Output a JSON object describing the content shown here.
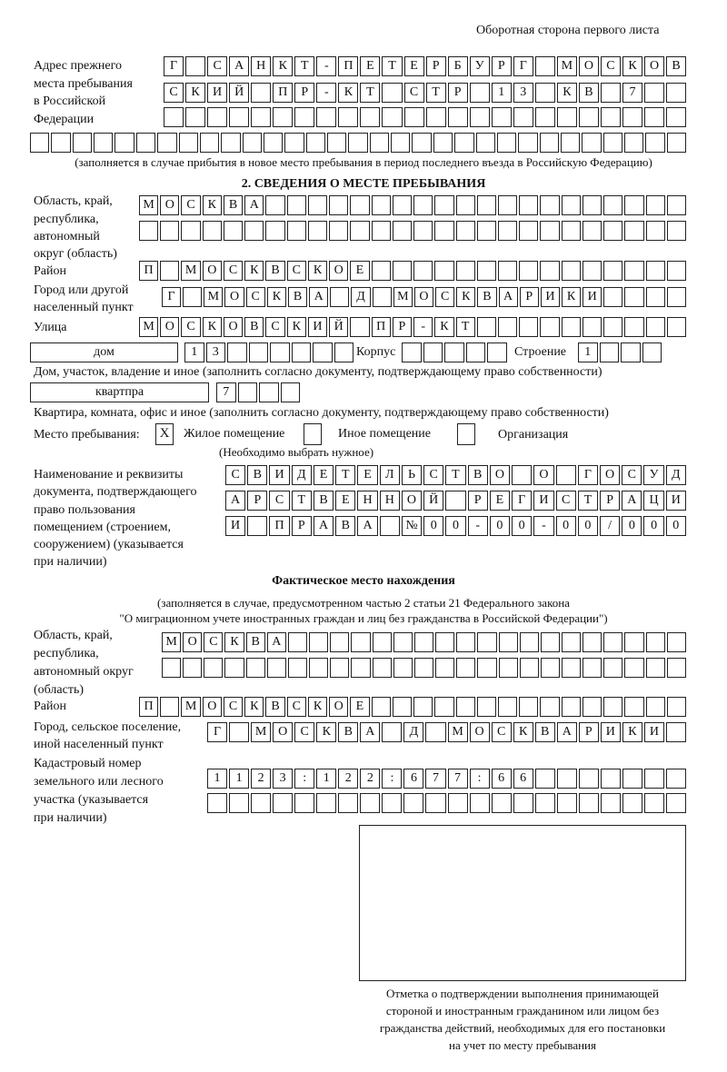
{
  "header": "Оборотная сторона первого листа",
  "prev_address": {
    "label": [
      "Адрес прежнего",
      "места пребывания",
      "в Российской",
      "Федерации"
    ],
    "rows": [
      [
        "Г",
        "",
        "С",
        "А",
        "Н",
        "К",
        "Т",
        "-",
        "П",
        "Е",
        "Т",
        "Е",
        "Р",
        "Б",
        "У",
        "Р",
        "Г",
        "",
        "М",
        "О",
        "С",
        "К",
        "О",
        "В"
      ],
      [
        "С",
        "К",
        "И",
        "Й",
        "",
        "П",
        "Р",
        "-",
        "К",
        "Т",
        "",
        "С",
        "Т",
        "Р",
        "",
        "1",
        "3",
        "",
        "К",
        "В",
        "",
        "7",
        "",
        ""
      ],
      [
        "",
        "",
        "",
        "",
        "",
        "",
        "",
        "",
        "",
        "",
        "",
        "",
        "",
        "",
        "",
        "",
        "",
        "",
        "",
        "",
        "",
        "",
        "",
        ""
      ],
      [
        "",
        "",
        "",
        "",
        "",
        "",
        "",
        "",
        "",
        "",
        "",
        "",
        "",
        "",
        "",
        "",
        "",
        "",
        "",
        "",
        "",
        "",
        "",
        "",
        "",
        "",
        "",
        "",
        "",
        "",
        ""
      ]
    ],
    "note": "(заполняется в случае прибытия в новое место пребывания в период последнего въезда в Российскую Федерацию)"
  },
  "section2": {
    "title": "2. СВЕДЕНИЯ О МЕСТЕ ПРЕБЫВАНИЯ",
    "region_label": [
      "Область, край,",
      "республика,",
      "автономный",
      "округ (область)"
    ],
    "region_rows": [
      [
        "М",
        "О",
        "С",
        "К",
        "В",
        "А",
        "",
        "",
        "",
        "",
        "",
        "",
        "",
        "",
        "",
        "",
        "",
        "",
        "",
        "",
        "",
        "",
        "",
        "",
        "",
        ""
      ],
      [
        "",
        "",
        "",
        "",
        "",
        "",
        "",
        "",
        "",
        "",
        "",
        "",
        "",
        "",
        "",
        "",
        "",
        "",
        "",
        "",
        "",
        "",
        "",
        "",
        "",
        ""
      ]
    ],
    "district_label": "Район",
    "district_row": [
      "П",
      "",
      "М",
      "О",
      "С",
      "К",
      "В",
      "С",
      "К",
      "О",
      "Е",
      "",
      "",
      "",
      "",
      "",
      "",
      "",
      "",
      "",
      "",
      "",
      "",
      "",
      "",
      ""
    ],
    "city_label": [
      "Город или другой",
      "населенный пункт"
    ],
    "city_row": [
      "Г",
      "",
      "М",
      "О",
      "С",
      "К",
      "В",
      "А",
      "",
      "Д",
      "",
      "М",
      "О",
      "С",
      "К",
      "В",
      "А",
      "Р",
      "И",
      "К",
      "И",
      "",
      "",
      "",
      ""
    ],
    "street_label": "Улица",
    "street_row": [
      "М",
      "О",
      "С",
      "К",
      "О",
      "В",
      "С",
      "К",
      "И",
      "Й",
      "",
      "П",
      "Р",
      "-",
      "К",
      "Т",
      "",
      "",
      "",
      "",
      "",
      "",
      "",
      "",
      "",
      ""
    ],
    "house_type": "дом",
    "house_row": [
      "1",
      "3",
      "",
      "",
      "",
      "",
      "",
      ""
    ],
    "korpus_label": "Корпус",
    "korpus_row": [
      "",
      "",
      "",
      "",
      ""
    ],
    "building_label": "Строение",
    "building_row": [
      "1",
      "",
      "",
      ""
    ],
    "house_note": "Дом, участок, владение и иное (заполнить согласно документу, подтверждающему право собственности)",
    "flat_type": "квартпра",
    "flat_row": [
      "7",
      "",
      "",
      ""
    ],
    "flat_note": "Квартира, комната, офис и иное (заполнить согласно документу, подтверждающему право собственности)",
    "stay_label": "Место пребывания:",
    "stay_options": [
      {
        "label": "Жилое помещение",
        "mark": "X"
      },
      {
        "label": "Иное помещение",
        "mark": ""
      },
      {
        "label": "Организация",
        "mark": ""
      }
    ],
    "stay_note": "(Необходимо выбрать нужное)",
    "doc_label": [
      "Наименование и реквизиты",
      "документа, подтверждающего",
      "право пользования",
      "помещением (строением,",
      "сооружением) (указывается",
      "при наличии)"
    ],
    "doc_rows": [
      [
        "С",
        "В",
        "И",
        "Д",
        "Е",
        "Т",
        "Е",
        "Л",
        "Ь",
        "С",
        "Т",
        "В",
        "О",
        "",
        "О",
        "",
        "Г",
        "О",
        "С",
        "У",
        "Д"
      ],
      [
        "А",
        "Р",
        "С",
        "Т",
        "В",
        "Е",
        "Н",
        "Н",
        "О",
        "Й",
        "",
        "Р",
        "Е",
        "Г",
        "И",
        "С",
        "Т",
        "Р",
        "А",
        "Ц",
        "И"
      ],
      [
        "И",
        "",
        "П",
        "Р",
        "А",
        "В",
        "А",
        "",
        "№",
        "0",
        "0",
        "-",
        "0",
        "0",
        "-",
        "0",
        "0",
        "/",
        "0",
        "0",
        "0"
      ]
    ]
  },
  "actual": {
    "title": "Фактическое место нахождения",
    "note": [
      "(заполняется в случае, предусмотренном частью 2 статьи 21 Федерального закона",
      "\"О миграционном учете иностранных граждан и лиц без гражданства в Российской Федерации\")"
    ],
    "region_label": [
      "Область, край,",
      "республика,",
      "автономный округ",
      "(область)"
    ],
    "region_rows": [
      [
        "М",
        "О",
        "С",
        "К",
        "В",
        "А",
        "",
        "",
        "",
        "",
        "",
        "",
        "",
        "",
        "",
        "",
        "",
        "",
        "",
        "",
        "",
        "",
        "",
        "",
        ""
      ],
      [
        "",
        "",
        "",
        "",
        "",
        "",
        "",
        "",
        "",
        "",
        "",
        "",
        "",
        "",
        "",
        "",
        "",
        "",
        "",
        "",
        "",
        "",
        "",
        "",
        ""
      ]
    ],
    "district_label": "Район",
    "district_row": [
      "П",
      "",
      "М",
      "О",
      "С",
      "К",
      "В",
      "С",
      "К",
      "О",
      "Е",
      "",
      "",
      "",
      "",
      "",
      "",
      "",
      "",
      "",
      "",
      "",
      "",
      "",
      "",
      ""
    ],
    "city_label": [
      "Город, сельское поселение,",
      "иной населенный пункт"
    ],
    "city_row": [
      "Г",
      "",
      "М",
      "О",
      "С",
      "К",
      "В",
      "А",
      "",
      "Д",
      "",
      "М",
      "О",
      "С",
      "К",
      "В",
      "А",
      "Р",
      "И",
      "К",
      "И",
      ""
    ],
    "cadastre_label": [
      "Кадастровый номер",
      "земельного или лесного",
      "участка (указывается",
      "при наличии)"
    ],
    "cadastre_rows": [
      [
        "1",
        "1",
        "2",
        "3",
        ":",
        "1",
        "2",
        "2",
        ":",
        "6",
        "7",
        "7",
        ":",
        "6",
        "6",
        "",
        "",
        "",
        "",
        "",
        "",
        ""
      ],
      [
        "",
        "",
        "",
        "",
        "",
        "",
        "",
        "",
        "",
        "",
        "",
        "",
        "",
        "",
        "",
        "",
        "",
        "",
        "",
        "",
        "",
        ""
      ]
    ]
  },
  "stamp_caption": [
    "Отметка о подтверждении выполнения принимающей",
    "стороной и иностранным гражданином или лицом без",
    "гражданства действий, необходимых для его постановки",
    "на учет по месту пребывания"
  ]
}
